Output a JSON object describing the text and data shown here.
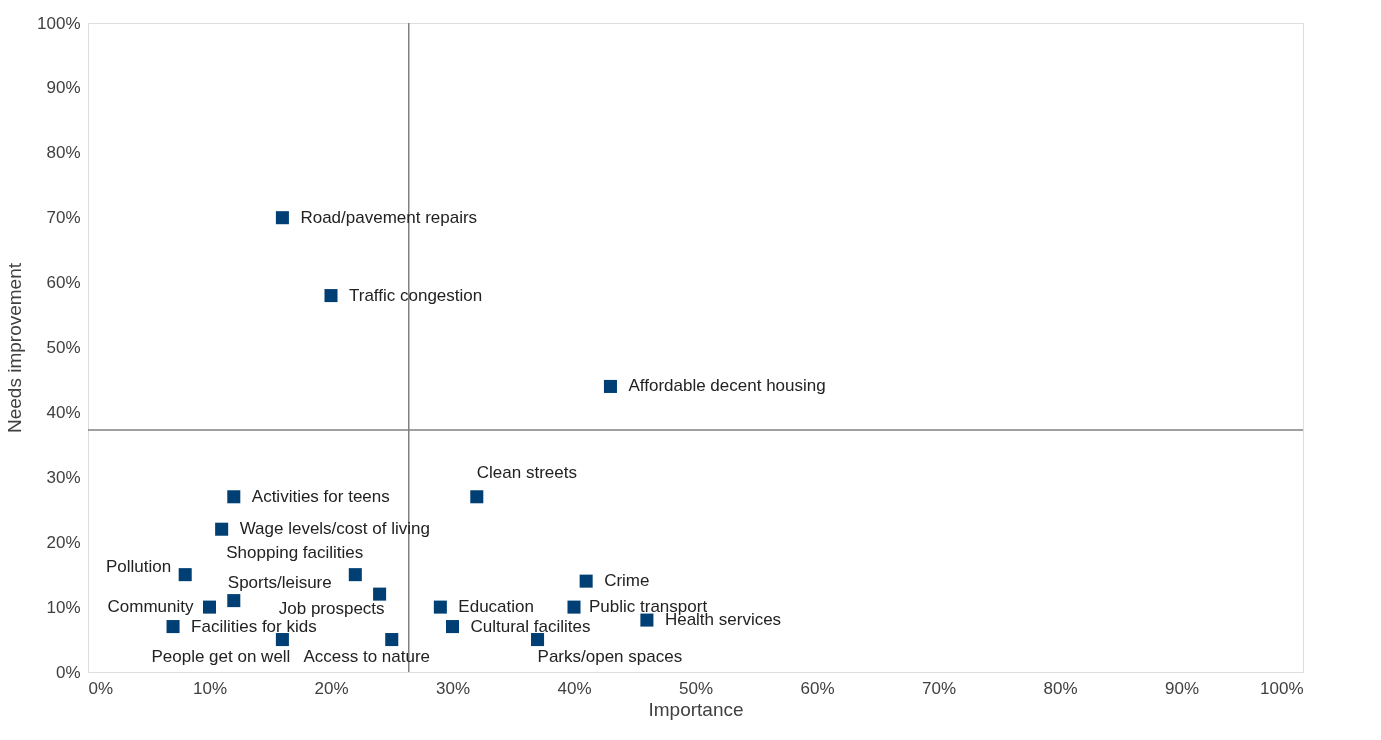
{
  "chart_data": {
    "type": "scatter",
    "xlabel": "Importance",
    "ylabel": "Needs improvement",
    "marker": "square",
    "grid": false,
    "x": [
      16,
      20,
      43,
      32,
      12,
      11,
      8,
      22,
      12,
      24,
      10,
      7,
      16,
      25,
      29,
      30,
      37,
      41,
      40,
      46
    ],
    "series": [
      {
        "color": "#003f73",
        "values": [
          70,
          58,
          44,
          27,
          27,
          22,
          15,
          15,
          11,
          12,
          10,
          7,
          5,
          5,
          10,
          7,
          5,
          14,
          10,
          8
        ]
      }
    ],
    "annotations": [
      {
        "text": "Road/pavement repairs",
        "x": 16,
        "y": 70
      },
      {
        "text": "Traffic congestion",
        "x": 20,
        "y": 58
      },
      {
        "text": "Affordable decent housing",
        "x": 43,
        "y": 44
      },
      {
        "text": "Clean streets",
        "x": 32,
        "y": 27
      },
      {
        "text": "Activities for teens",
        "x": 12,
        "y": 27
      },
      {
        "text": "Wage levels/cost of living",
        "x": 11,
        "y": 22
      },
      {
        "text": "Pollution",
        "x": 8,
        "y": 15
      },
      {
        "text": "Shopping facilities",
        "x": 22,
        "y": 15
      },
      {
        "text": "Sports/leisure",
        "x": 12,
        "y": 11
      },
      {
        "text": "Job prospects",
        "x": 24,
        "y": 12
      },
      {
        "text": "Community",
        "x": 10,
        "y": 10
      },
      {
        "text": "Facilities for kids",
        "x": 7,
        "y": 7
      },
      {
        "text": "People get on well",
        "x": 16,
        "y": 5
      },
      {
        "text": "Access to nature",
        "x": 25,
        "y": 5
      },
      {
        "text": "Education",
        "x": 29,
        "y": 10
      },
      {
        "text": "Cultural facilites",
        "x": 30,
        "y": 7
      },
      {
        "text": "Parks/open spaces",
        "x": 37,
        "y": 5
      },
      {
        "text": "Crime",
        "x": 41,
        "y": 14
      },
      {
        "text": "Public transport",
        "x": 40,
        "y": 10
      },
      {
        "text": "Health services",
        "x": 46,
        "y": 8
      }
    ],
    "ref_lines": [
      {
        "axis": "x",
        "value": 26.4,
        "color": "#808080"
      },
      {
        "axis": "y",
        "value": 37.3,
        "color": "#808080"
      }
    ],
    "xlim": [
      0,
      100
    ],
    "ylim": [
      0,
      100
    ],
    "xticks": [
      {
        "value": 0,
        "label": "0%"
      },
      {
        "value": 10,
        "label": "10%"
      },
      {
        "value": 20,
        "label": "20%"
      },
      {
        "value": 30,
        "label": "30%"
      },
      {
        "value": 40,
        "label": "40%"
      },
      {
        "value": 50,
        "label": "50%"
      },
      {
        "value": 60,
        "label": "60%"
      },
      {
        "value": 70,
        "label": "70%"
      },
      {
        "value": 80,
        "label": "80%"
      },
      {
        "value": 90,
        "label": "90%"
      },
      {
        "value": 100,
        "label": "100%"
      }
    ],
    "yticks": [
      {
        "value": 0,
        "label": "0%"
      },
      {
        "value": 10,
        "label": "10%"
      },
      {
        "value": 20,
        "label": "20%"
      },
      {
        "value": 30,
        "label": "30%"
      },
      {
        "value": 40,
        "label": "40%"
      },
      {
        "value": 50,
        "label": "50%"
      },
      {
        "value": 60,
        "label": "60%"
      },
      {
        "value": 70,
        "label": "70%"
      },
      {
        "value": 80,
        "label": "80%"
      },
      {
        "value": 90,
        "label": "90%"
      },
      {
        "value": 100,
        "label": "100%"
      }
    ]
  }
}
